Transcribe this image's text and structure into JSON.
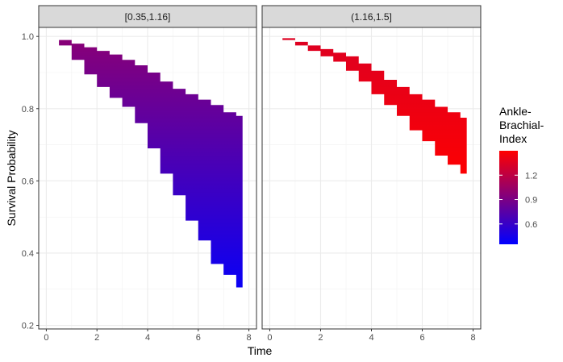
{
  "chart_data": {
    "type": "area",
    "xlabel": "Time",
    "ylabel": "Survival Probability",
    "xlim": [
      -0.3,
      8.3
    ],
    "ylim": [
      0.19,
      1.025
    ],
    "x_ticks": [
      0,
      2,
      4,
      6,
      8
    ],
    "y_ticks": [
      0.2,
      0.4,
      0.6,
      0.8,
      1.0
    ],
    "y_tick_labels": [
      "0.2",
      "0.4",
      "0.6",
      "0.8",
      "1.0"
    ],
    "grid": true,
    "facets": [
      {
        "label": "[0.35,1.16]",
        "x": [
          0,
          0.5,
          1,
          1.5,
          2,
          2.5,
          3,
          3.5,
          4,
          4.5,
          5,
          5.5,
          6,
          6.5,
          7,
          7.5,
          7.75
        ],
        "upper": [
          1.0,
          0.99,
          0.98,
          0.97,
          0.96,
          0.95,
          0.935,
          0.92,
          0.9,
          0.875,
          0.855,
          0.84,
          0.825,
          0.81,
          0.79,
          0.78,
          0.745
        ],
        "lower": [
          1.0,
          0.975,
          0.935,
          0.895,
          0.86,
          0.83,
          0.805,
          0.76,
          0.69,
          0.62,
          0.56,
          0.49,
          0.435,
          0.37,
          0.34,
          0.305,
          0.25
        ],
        "abi_at_upper": 1.16,
        "abi_at_lower": 0.35
      },
      {
        "label": "(1.16,1.5]",
        "x": [
          0,
          0.5,
          1,
          1.5,
          2,
          2.5,
          3,
          3.5,
          4,
          4.5,
          5,
          5.5,
          6,
          6.5,
          7,
          7.5,
          7.75
        ],
        "upper": [
          1.0,
          0.995,
          0.985,
          0.975,
          0.965,
          0.955,
          0.945,
          0.925,
          0.905,
          0.88,
          0.86,
          0.84,
          0.825,
          0.805,
          0.79,
          0.775,
          0.745
        ],
        "lower": [
          1.0,
          0.99,
          0.975,
          0.96,
          0.945,
          0.93,
          0.905,
          0.875,
          0.84,
          0.81,
          0.78,
          0.74,
          0.71,
          0.67,
          0.645,
          0.62,
          0.59
        ],
        "abi_at_upper": 1.5,
        "abi_at_lower": 1.16
      }
    ],
    "legend": {
      "title_lines": [
        "Ankle-",
        "Brachial-",
        "Index"
      ],
      "breaks": [
        1.2,
        0.9,
        0.6
      ],
      "break_labels": [
        "1.2",
        "0.9",
        "0.6"
      ],
      "range": [
        0.35,
        1.5
      ],
      "color_low": "#0000FF",
      "color_high": "#FF0000",
      "position": "right"
    }
  }
}
